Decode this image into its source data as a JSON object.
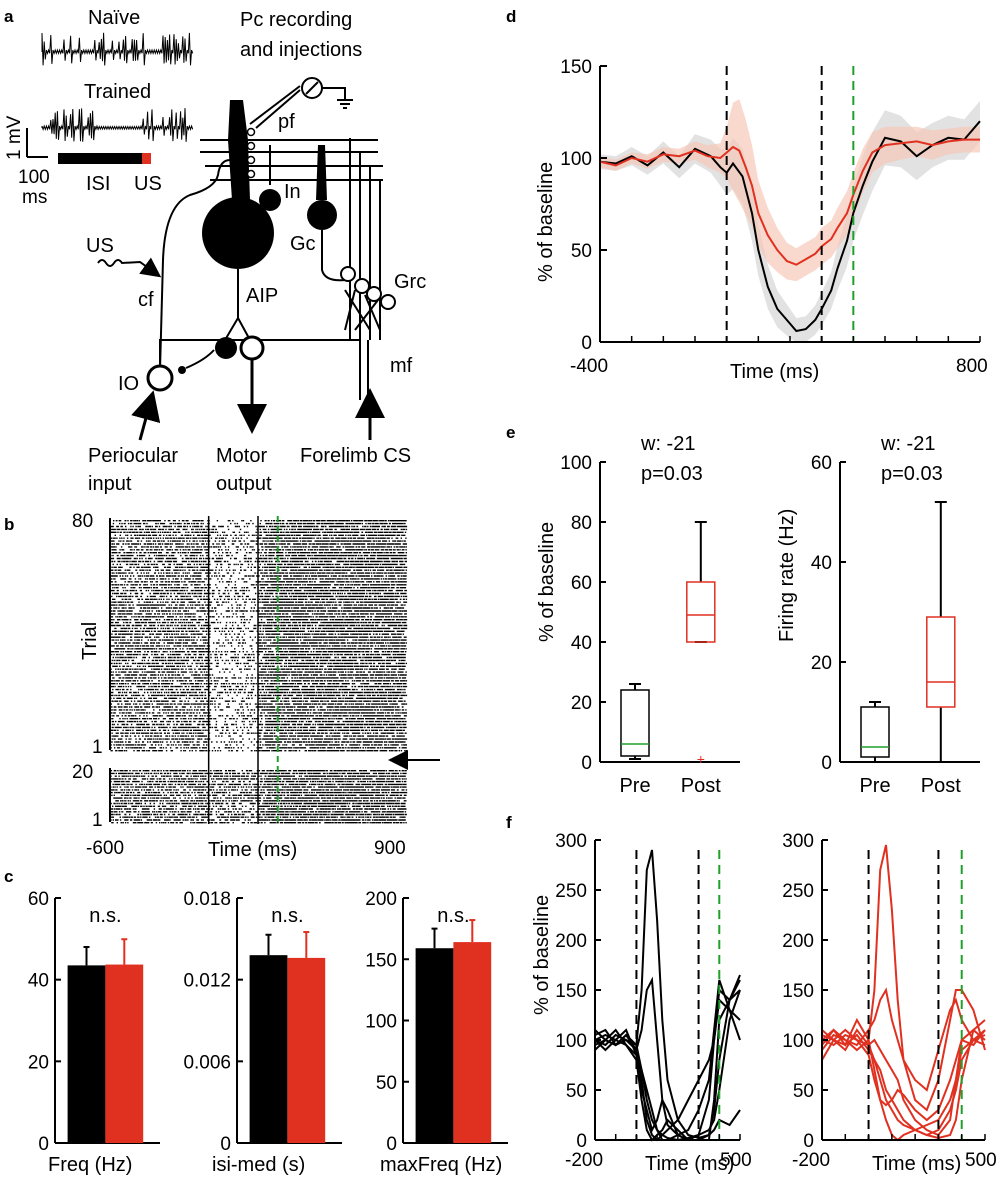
{
  "panel_labels": {
    "a": "a",
    "b": "b",
    "c": "c",
    "d": "d",
    "e": "e",
    "f": "f"
  },
  "colors": {
    "black": "#000000",
    "red": "#e03020",
    "green": "#1fa02a",
    "red_band": "#f6c9b8",
    "grey_band": "#d6d6d6",
    "us_bar": "#e03020"
  },
  "panel_a": {
    "naive": "Naïve",
    "trained": "Trained",
    "scale_mv": "1 mV",
    "scale_ms": "100",
    "scale_ms_unit": "ms",
    "isi": "ISI",
    "us": "US",
    "pc_title_1": "Pc recording",
    "pc_title_2": "and injections",
    "pf": "pf",
    "in": "In",
    "gc": "Gc",
    "grc": "Grc",
    "us_input": "US",
    "cf": "cf",
    "aip": "AIP",
    "mf": "mf",
    "io": "IO",
    "periocular_1": "Periocular",
    "periocular_2": "input",
    "motor_1": "Motor",
    "motor_2": "output",
    "forelimb": "Forelimb CS"
  },
  "panel_b": {
    "ylabel": "Trial",
    "xlabel": "Time (ms)",
    "x_ticks": [
      "-600",
      "900"
    ],
    "top_ticks": [
      "80",
      "1"
    ],
    "bottom_ticks": [
      "20",
      "1"
    ],
    "markers_ms": [
      -100,
      150,
      250
    ]
  },
  "chart_data": [
    {
      "id": "c1",
      "type": "bar",
      "xlabel": "Freq (Hz)",
      "ylim": [
        0,
        60
      ],
      "ticks": [
        "0",
        "20",
        "40",
        "60"
      ],
      "annotation": "n.s.",
      "series": [
        {
          "name": "naive",
          "color": "#000000",
          "value": 43.5,
          "err": 4.5
        },
        {
          "name": "trained",
          "color": "#e03020",
          "value": 43.7,
          "err": 6.2
        }
      ]
    },
    {
      "id": "c2",
      "type": "bar",
      "xlabel": "isi-med (s)",
      "ylim": [
        0,
        0.018
      ],
      "ticks": [
        "0",
        "0.006",
        "0.012",
        "0.018"
      ],
      "annotation": "n.s.",
      "series": [
        {
          "name": "naive",
          "color": "#000000",
          "value": 0.0138,
          "err": 0.0015
        },
        {
          "name": "trained",
          "color": "#e03020",
          "value": 0.0136,
          "err": 0.0019
        }
      ]
    },
    {
      "id": "c3",
      "type": "bar",
      "xlabel": "maxFreq (Hz)",
      "ylim": [
        0,
        200
      ],
      "ticks": [
        "0",
        "50",
        "100",
        "150",
        "200"
      ],
      "annotation": "n.s.",
      "series": [
        {
          "name": "naive",
          "color": "#000000",
          "value": 159,
          "err": 16
        },
        {
          "name": "trained",
          "color": "#e03020",
          "value": 164,
          "err": 18
        }
      ]
    },
    {
      "id": "d",
      "type": "line",
      "xlabel": "Time (ms)",
      "ylabel": "% of baseline",
      "xlim": [
        -400,
        800
      ],
      "ylim": [
        0,
        150
      ],
      "x_ticks": [
        "-400",
        "800"
      ],
      "y_ticks": [
        "0",
        "50",
        "100",
        "150"
      ],
      "vlines": [
        0,
        300
      ],
      "green_line": 400,
      "series": [
        {
          "name": "naive",
          "color": "#000000",
          "x": [
            -400,
            -350,
            -300,
            -250,
            -200,
            -150,
            -100,
            -50,
            -20,
            0,
            20,
            50,
            80,
            100,
            130,
            160,
            200,
            220,
            250,
            280,
            300,
            330,
            350,
            380,
            400,
            430,
            460,
            500,
            550,
            600,
            650,
            700,
            750,
            800
          ],
          "y": [
            98,
            97,
            101,
            96,
            103,
            95,
            105,
            101,
            95,
            92,
            97,
            90,
            70,
            50,
            30,
            18,
            10,
            6,
            7,
            12,
            18,
            28,
            40,
            55,
            70,
            85,
            98,
            111,
            109,
            101,
            107,
            111,
            110,
            120
          ],
          "band": [
            4,
            4,
            5,
            5,
            6,
            6,
            8,
            9,
            10,
            12,
            14,
            15,
            15,
            14,
            12,
            10,
            8,
            7,
            7,
            8,
            9,
            10,
            12,
            14,
            15,
            16,
            16,
            15,
            14,
            13,
            12,
            12,
            11,
            11
          ]
        },
        {
          "name": "trained",
          "color": "#e03020",
          "x": [
            -400,
            -350,
            -300,
            -250,
            -200,
            -150,
            -100,
            -60,
            -20,
            0,
            20,
            40,
            60,
            80,
            100,
            130,
            160,
            190,
            220,
            250,
            280,
            300,
            330,
            350,
            380,
            400,
            430,
            460,
            500,
            550,
            600,
            650,
            700,
            750,
            800
          ],
          "y": [
            98,
            96,
            100,
            98,
            102,
            101,
            104,
            101,
            100,
            103,
            106,
            104,
            95,
            85,
            70,
            58,
            50,
            44,
            42,
            45,
            48,
            52,
            56,
            62,
            70,
            80,
            93,
            103,
            107,
            108,
            109,
            107,
            109,
            110,
            110
          ],
          "band": [
            3,
            3,
            3,
            4,
            4,
            4,
            5,
            6,
            8,
            14,
            24,
            28,
            26,
            22,
            18,
            15,
            12,
            10,
            9,
            9,
            9,
            10,
            10,
            11,
            12,
            12,
            12,
            11,
            10,
            9,
            8,
            8,
            7,
            7,
            7
          ]
        }
      ]
    },
    {
      "id": "e1",
      "type": "box",
      "ylabel": "% of baseline",
      "ylim": [
        0,
        100
      ],
      "y_ticks": [
        "0",
        "20",
        "40",
        "60",
        "80",
        "100"
      ],
      "categories": [
        "Pre",
        "Post"
      ],
      "annotation_w": "w: -21",
      "annotation_p": "p=0.03",
      "boxes": [
        {
          "color": "#000000",
          "whislo": 1,
          "q1": 2,
          "med": 6,
          "q3": 24,
          "whishi": 26,
          "fliers": []
        },
        {
          "color": "#e03020",
          "whislo": 40,
          "q1": 40,
          "med": 49,
          "q3": 60,
          "whishi": 80,
          "fliers": [
            1
          ]
        }
      ]
    },
    {
      "id": "e2",
      "type": "box",
      "ylabel": "Firing rate (Hz)",
      "ylim": [
        0,
        60
      ],
      "y_ticks": [
        "0",
        "20",
        "40",
        "60"
      ],
      "categories": [
        "Pre",
        "Post"
      ],
      "annotation_w": "w: -21",
      "annotation_p": "p=0.03",
      "boxes": [
        {
          "color": "#000000",
          "whislo": 0,
          "q1": 1,
          "med": 3,
          "q3": 11,
          "whishi": 12,
          "fliers": []
        },
        {
          "color": "#e03020",
          "whislo": 0,
          "q1": 11,
          "med": 16,
          "q3": 29,
          "whishi": 52,
          "fliers": []
        }
      ]
    },
    {
      "id": "f1",
      "type": "line",
      "xlabel": "Time (ms)",
      "ylabel": "% of baseline",
      "xlim": [
        -200,
        500
      ],
      "ylim": [
        0,
        300
      ],
      "x_ticks": [
        "-200",
        "500"
      ],
      "y_ticks": [
        "0",
        "50",
        "100",
        "150",
        "200",
        "250",
        "300"
      ],
      "vlines": [
        0,
        300
      ],
      "green_line": 400,
      "x": [
        -200,
        -150,
        -100,
        -50,
        0,
        25,
        50,
        75,
        100,
        125,
        150,
        200,
        250,
        300,
        350,
        375,
        400,
        450,
        500
      ],
      "series": [
        {
          "color": "#000000",
          "y": [
            100,
            95,
            105,
            100,
            95,
            150,
            270,
            290,
            220,
            120,
            60,
            20,
            5,
            2,
            5,
            30,
            80,
            140,
            165
          ]
        },
        {
          "color": "#000000",
          "y": [
            105,
            110,
            95,
            100,
            90,
            110,
            150,
            160,
            100,
            40,
            15,
            5,
            0,
            5,
            10,
            20,
            50,
            120,
            150
          ]
        },
        {
          "color": "#000000",
          "y": [
            95,
            100,
            110,
            95,
            85,
            70,
            40,
            20,
            10,
            5,
            2,
            0,
            2,
            5,
            40,
            100,
            150,
            140,
            160
          ]
        },
        {
          "color": "#000000",
          "y": [
            110,
            100,
            95,
            105,
            90,
            60,
            20,
            5,
            0,
            5,
            10,
            20,
            40,
            60,
            80,
            100,
            140,
            130,
            120
          ]
        },
        {
          "color": "#000000",
          "y": [
            100,
            105,
            100,
            95,
            80,
            40,
            10,
            0,
            5,
            10,
            20,
            10,
            0,
            0,
            5,
            10,
            20,
            15,
            30
          ]
        },
        {
          "color": "#000000",
          "y": [
            100,
            90,
            100,
            110,
            85,
            50,
            30,
            10,
            20,
            40,
            30,
            5,
            0,
            0,
            0,
            40,
            120,
            140,
            150
          ]
        },
        {
          "color": "#000000",
          "y": [
            90,
            100,
            95,
            105,
            95,
            70,
            50,
            30,
            10,
            0,
            0,
            5,
            10,
            30,
            60,
            110,
            160,
            130,
            100
          ]
        }
      ]
    },
    {
      "id": "f2",
      "type": "line",
      "xlabel": "Time (ms)",
      "ylabel": "",
      "xlim": [
        -200,
        500
      ],
      "ylim": [
        0,
        300
      ],
      "x_ticks": [
        "-200",
        "500"
      ],
      "y_ticks": [
        "0",
        "50",
        "100",
        "150",
        "200",
        "250",
        "300"
      ],
      "vlines": [
        0,
        300
      ],
      "green_line": 400,
      "x": [
        -200,
        -150,
        -100,
        -50,
        0,
        25,
        50,
        75,
        100,
        125,
        150,
        200,
        250,
        300,
        350,
        375,
        400,
        450,
        500
      ],
      "series": [
        {
          "color": "#e03020",
          "y": [
            100,
            110,
            95,
            120,
            100,
            150,
            270,
            295,
            230,
            140,
            80,
            40,
            30,
            60,
            120,
            150,
            150,
            130,
            90
          ]
        },
        {
          "color": "#e03020",
          "y": [
            90,
            105,
            100,
            95,
            110,
            120,
            140,
            150,
            120,
            100,
            80,
            60,
            50,
            90,
            130,
            140,
            120,
            100,
            110
          ]
        },
        {
          "color": "#e03020",
          "y": [
            110,
            100,
            95,
            105,
            90,
            80,
            60,
            40,
            30,
            20,
            15,
            10,
            5,
            2,
            5,
            20,
            60,
            110,
            120
          ]
        },
        {
          "color": "#e03020",
          "y": [
            95,
            110,
            100,
            90,
            100,
            70,
            40,
            20,
            5,
            0,
            5,
            10,
            15,
            20,
            40,
            60,
            90,
            100,
            95
          ]
        },
        {
          "color": "#e03020",
          "y": [
            100,
            95,
            105,
            100,
            85,
            60,
            40,
            35,
            40,
            50,
            45,
            30,
            20,
            30,
            60,
            80,
            100,
            95,
            110
          ]
        },
        {
          "color": "#e03020",
          "y": [
            105,
            100,
            90,
            110,
            95,
            80,
            70,
            50,
            40,
            30,
            20,
            10,
            5,
            10,
            30,
            50,
            80,
            100,
            105
          ]
        },
        {
          "color": "#e03020",
          "y": [
            80,
            100,
            110,
            100,
            95,
            100,
            90,
            80,
            70,
            60,
            40,
            20,
            10,
            5,
            20,
            60,
            100,
            110,
            100
          ]
        }
      ]
    }
  ]
}
